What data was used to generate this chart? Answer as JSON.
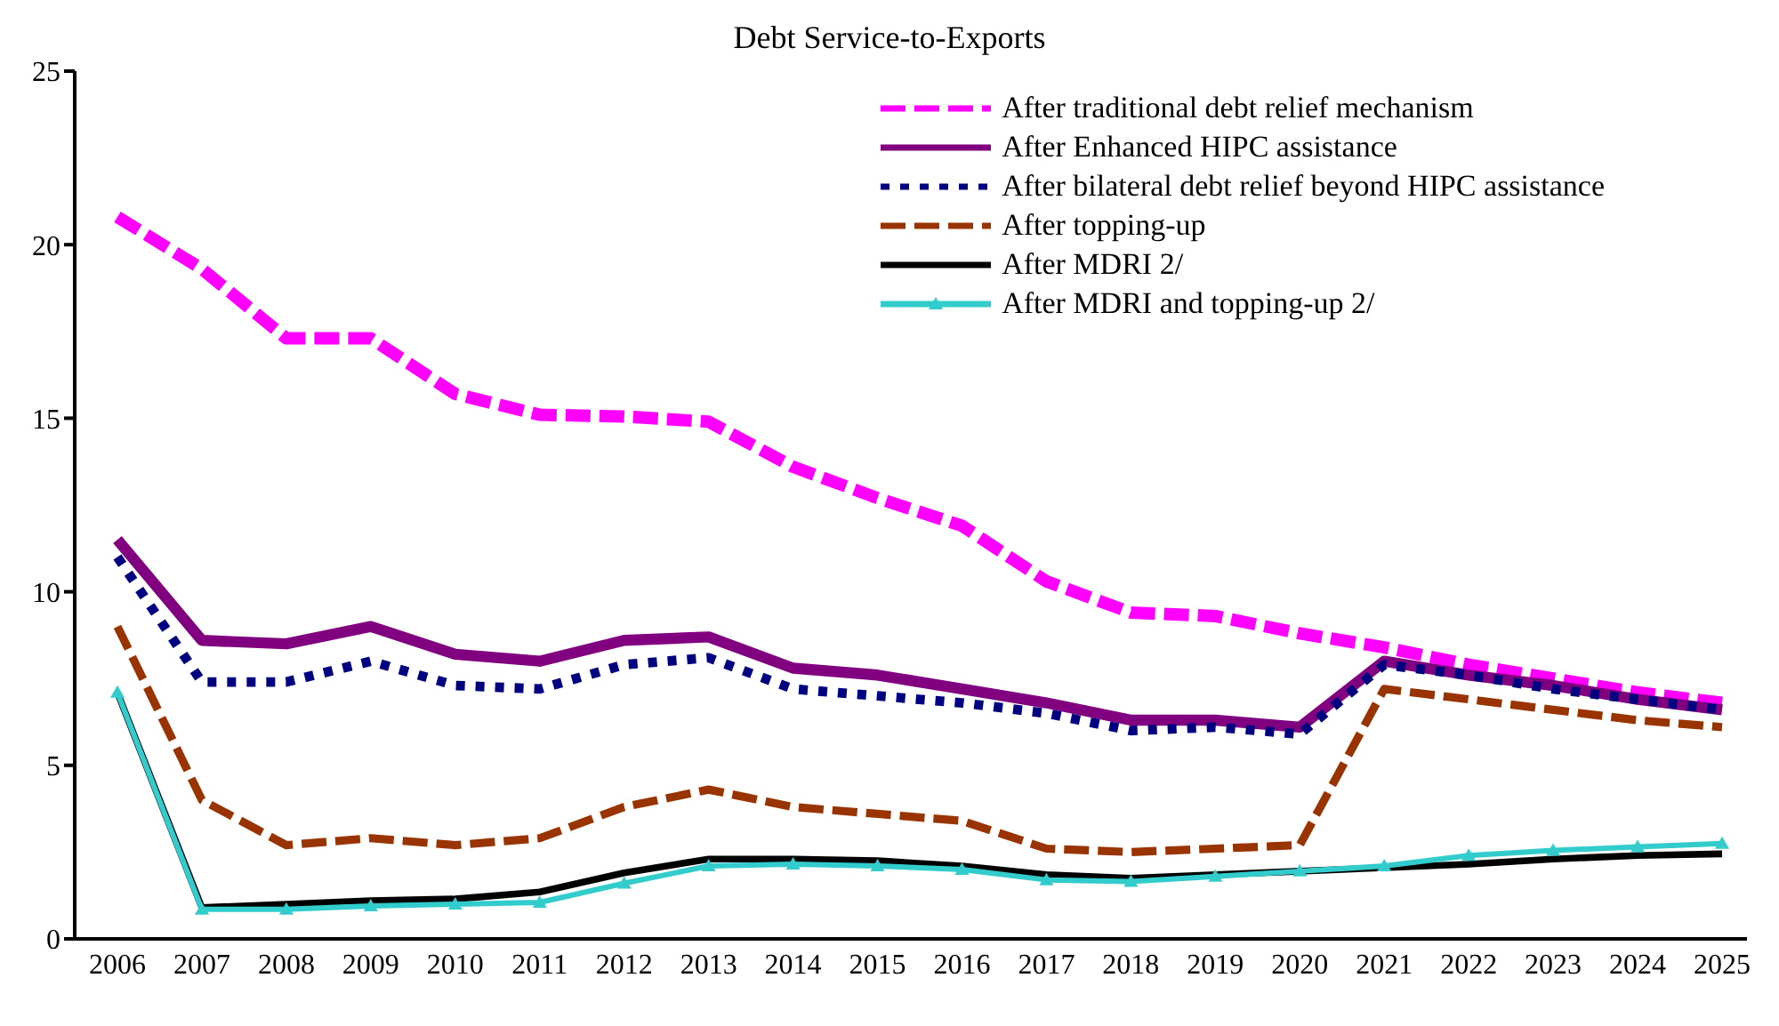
{
  "chart_data": {
    "type": "line",
    "title": "Debt Service-to-Exports",
    "categories": [
      "2006",
      "2007",
      "2008",
      "2009",
      "2010",
      "2011",
      "2012",
      "2013",
      "2014",
      "2015",
      "2016",
      "2017",
      "2018",
      "2019",
      "2020",
      "2021",
      "2022",
      "2023",
      "2024",
      "2025"
    ],
    "ylim": [
      0,
      25
    ],
    "yticks": [
      0,
      5,
      10,
      15,
      20,
      25
    ],
    "grid": false,
    "legend": "top right",
    "series": [
      {
        "name": "After traditional debt relief mechanism",
        "color": "#ff00ff",
        "line_style": "dashed",
        "values": [
          20.8,
          19.3,
          17.3,
          17.3,
          15.7,
          15.1,
          15.05,
          14.9,
          13.6,
          12.7,
          11.9,
          10.3,
          9.4,
          9.3,
          8.8,
          8.4,
          7.9,
          7.5,
          7.1,
          6.8
        ]
      },
      {
        "name": "After Enhanced HIPC assistance",
        "color": "#800080",
        "line_style": "solid",
        "values": [
          11.5,
          8.6,
          8.5,
          9.0,
          8.2,
          8.0,
          8.6,
          8.7,
          7.8,
          7.6,
          7.2,
          6.8,
          6.3,
          6.3,
          6.1,
          8.0,
          7.6,
          7.3,
          6.9,
          6.6
        ]
      },
      {
        "name": "After bilateral debt relief beyond HIPC assistance",
        "color": "#000080",
        "line_style": "dotted",
        "values": [
          11.0,
          7.4,
          7.4,
          8.0,
          7.3,
          7.2,
          7.9,
          8.1,
          7.2,
          7.0,
          6.8,
          6.5,
          6.0,
          6.1,
          5.9,
          7.9,
          7.6,
          7.2,
          6.9,
          6.6
        ]
      },
      {
        "name": "After topping-up",
        "color": "#993300",
        "line_style": "dashed",
        "values": [
          9.0,
          4.0,
          2.7,
          2.9,
          2.7,
          2.9,
          3.8,
          4.3,
          3.8,
          3.6,
          3.4,
          2.6,
          2.5,
          2.6,
          2.7,
          7.2,
          6.9,
          6.6,
          6.3,
          6.1
        ]
      },
      {
        "name": "After MDRI 2/",
        "color": "#000000",
        "line_style": "solid",
        "values": [
          7.1,
          0.9,
          1.0,
          1.1,
          1.15,
          1.35,
          1.9,
          2.3,
          2.3,
          2.25,
          2.1,
          1.85,
          1.75,
          1.85,
          1.95,
          2.05,
          2.15,
          2.3,
          2.4,
          2.45
        ]
      },
      {
        "name": "After MDRI and topping-up 2/",
        "color": "#33cccc",
        "line_style": "solid",
        "marker": "triangle",
        "values": [
          7.1,
          0.85,
          0.85,
          0.95,
          1.0,
          1.05,
          1.6,
          2.1,
          2.15,
          2.1,
          2.0,
          1.7,
          1.65,
          1.8,
          1.95,
          2.1,
          2.4,
          2.55,
          2.65,
          2.75
        ]
      }
    ]
  }
}
